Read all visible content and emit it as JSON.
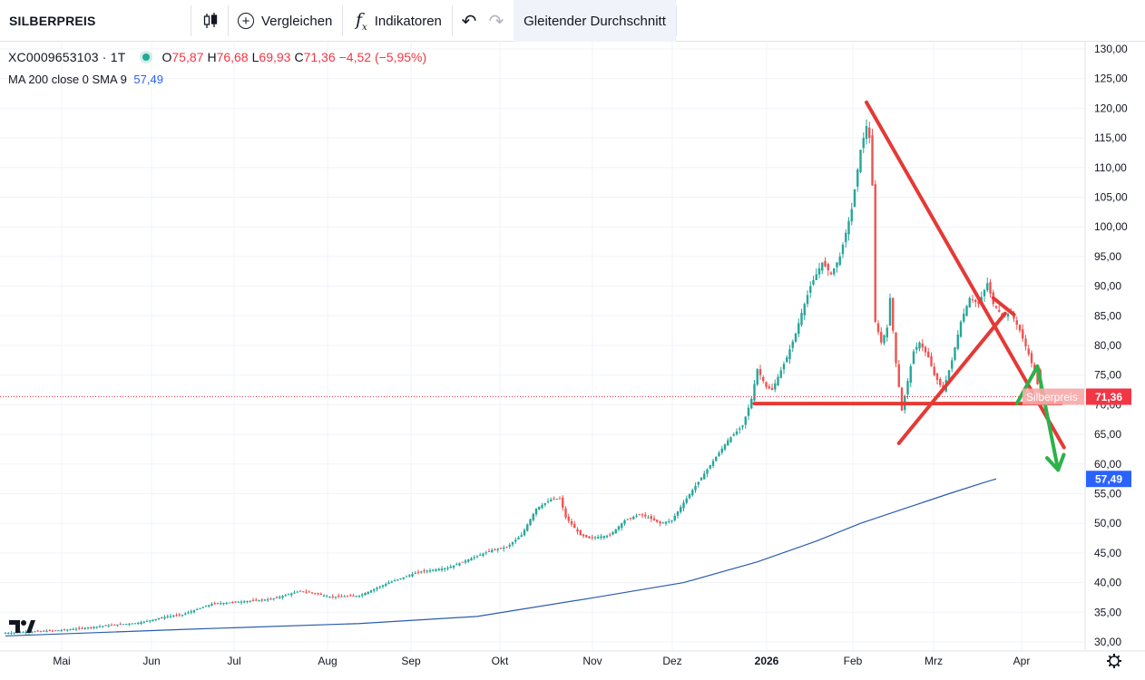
{
  "toolbar": {
    "symbol": "SILBERPREIS",
    "compare": "Vergleichen",
    "indicators": "Indikatoren",
    "active_indicator": "Gleitender Durchschnitt"
  },
  "legend": {
    "symbol_line": "XC0009653103 · 1T",
    "o_label": "O",
    "o_value": "75,87",
    "h_label": "H",
    "h_value": "76,68",
    "l_label": "L",
    "l_value": "69,93",
    "c_label": "C",
    "c_value": "71,36",
    "change": "−4,52 (−5,95%)",
    "ma_label": "MA 200 close 0 SMA 9",
    "ma_value": "57,49"
  },
  "colors": {
    "up": "#26a69a",
    "down": "#ef5350",
    "ma": "#2a5cad",
    "drawing_red": "#e53935",
    "drawing_green": "#2bb24a",
    "last_price": "#f23645",
    "ma_badge": "#2962ff"
  },
  "chart_data": {
    "type": "candlestick",
    "interval": "1T",
    "y_axis": {
      "side": "right",
      "ylim": [
        30,
        130
      ],
      "tick_step": 5,
      "ticks": [
        "30,00",
        "35,00",
        "40,00",
        "45,00",
        "50,00",
        "55,00",
        "60,00",
        "65,00",
        "70,00",
        "75,00",
        "80,00",
        "85,00",
        "90,00",
        "95,00",
        "100,00",
        "105,00",
        "110,00",
        "115,00",
        "120,00",
        "125,00",
        "130,00"
      ]
    },
    "x_axis": {
      "labels": [
        "Mai",
        "Jun",
        "Jul",
        "Aug",
        "Sep",
        "Okt",
        "Nov",
        "Dez",
        "2026",
        "Feb",
        "Mrz",
        "Apr"
      ],
      "bold": "2026"
    },
    "price_path": [
      [
        0,
        31.5
      ],
      [
        20,
        32.0
      ],
      [
        35,
        32.8
      ],
      [
        45,
        33.2
      ],
      [
        55,
        34.3
      ],
      [
        60,
        34.6
      ],
      [
        70,
        36.4
      ],
      [
        80,
        36.8
      ],
      [
        90,
        37.2
      ],
      [
        100,
        38.6
      ],
      [
        105,
        38.2
      ],
      [
        110,
        37.6
      ],
      [
        120,
        37.8
      ],
      [
        130,
        40.0
      ],
      [
        140,
        41.8
      ],
      [
        150,
        42.5
      ],
      [
        160,
        44.5
      ],
      [
        165,
        45.5
      ],
      [
        170,
        46.0
      ],
      [
        175,
        48.0
      ],
      [
        180,
        52.5
      ],
      [
        185,
        54.0
      ],
      [
        188,
        54.2
      ],
      [
        190,
        51.0
      ],
      [
        195,
        48.0
      ],
      [
        198,
        47.5
      ],
      [
        205,
        48.0
      ],
      [
        210,
        50.5
      ],
      [
        215,
        51.5
      ],
      [
        218,
        51.0
      ],
      [
        222,
        50.0
      ],
      [
        226,
        50.5
      ],
      [
        230,
        53.5
      ],
      [
        235,
        57.0
      ],
      [
        240,
        60.5
      ],
      [
        245,
        64.0
      ],
      [
        250,
        66.5
      ],
      [
        253,
        71.0
      ],
      [
        255,
        76.0
      ],
      [
        258,
        73.0
      ],
      [
        260,
        72.5
      ],
      [
        265,
        78.0
      ],
      [
        268,
        82.0
      ],
      [
        270,
        85.5
      ],
      [
        273,
        90.0
      ],
      [
        277,
        94.0
      ],
      [
        280,
        92.0
      ],
      [
        283,
        95.0
      ],
      [
        287,
        103.0
      ],
      [
        290,
        113.0
      ],
      [
        292,
        117.0
      ],
      [
        293,
        115.0
      ],
      [
        294,
        107.0
      ],
      [
        295,
        84.0
      ],
      [
        297,
        80.5
      ],
      [
        299,
        83.0
      ],
      [
        300,
        88.0
      ],
      [
        302,
        77.0
      ],
      [
        304,
        69.0
      ],
      [
        306,
        74.0
      ],
      [
        308,
        79.0
      ],
      [
        310,
        80.5
      ],
      [
        313,
        78.0
      ],
      [
        315,
        75.0
      ],
      [
        318,
        72.5
      ],
      [
        321,
        77.5
      ],
      [
        324,
        84.0
      ],
      [
        327,
        88.0
      ],
      [
        330,
        87.0
      ],
      [
        333,
        90.5
      ],
      [
        335,
        87.0
      ],
      [
        338,
        85.0
      ],
      [
        341,
        85.5
      ],
      [
        344,
        82.5
      ],
      [
        347,
        78.5
      ],
      [
        349,
        75.5
      ],
      [
        351,
        71.36
      ]
    ],
    "ma200": {
      "name": "MA 200 close 0 SMA 9",
      "points": [
        [
          0,
          31.0
        ],
        [
          60,
          32.1
        ],
        [
          120,
          33.1
        ],
        [
          160,
          34.3
        ],
        [
          200,
          37.5
        ],
        [
          230,
          40.0
        ],
        [
          255,
          43.5
        ],
        [
          275,
          47.0
        ],
        [
          290,
          50.0
        ],
        [
          305,
          52.5
        ],
        [
          320,
          55.0
        ],
        [
          332,
          56.9
        ],
        [
          336,
          57.49
        ]
      ]
    },
    "last_price": {
      "value": 71.36,
      "label": "Silberpreis",
      "display": "71,36"
    },
    "ma_last": {
      "value": 57.49,
      "display": "57,49"
    },
    "drawings": [
      {
        "type": "line",
        "color": "red",
        "from": [
          292,
          121.0
        ],
        "to": [
          359,
          62.8
        ]
      },
      {
        "type": "line",
        "color": "red",
        "from": [
          254,
          70.2
        ],
        "to": [
          358,
          70.2
        ]
      },
      {
        "type": "line",
        "color": "red",
        "from": [
          303,
          63.5
        ],
        "to": [
          339,
          85.4
        ]
      },
      {
        "type": "line",
        "color": "red",
        "from": [
          335,
          88.0
        ],
        "to": [
          342,
          85.2
        ]
      },
      {
        "type": "arrow",
        "color": "green",
        "points": [
          [
            343,
            70.2
          ],
          [
            350,
            76.5
          ],
          [
            357,
            59.0
          ]
        ]
      }
    ]
  }
}
